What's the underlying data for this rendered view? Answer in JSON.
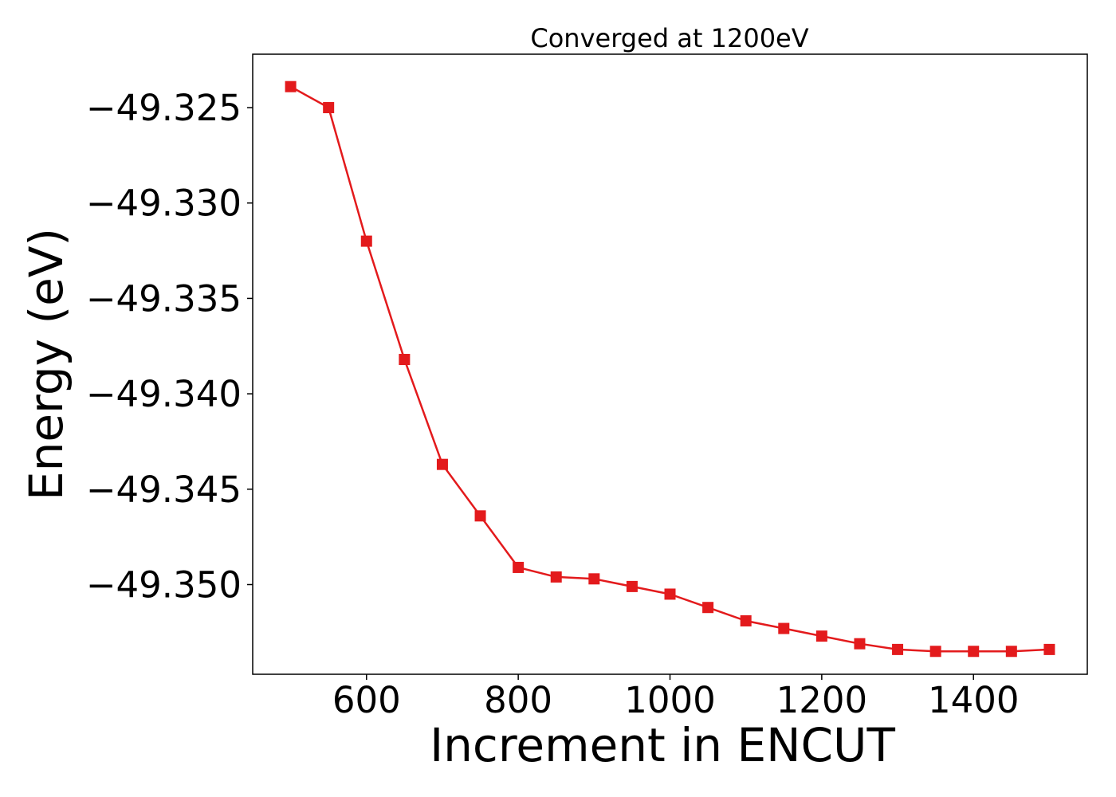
{
  "chart_data": {
    "type": "line",
    "title": "Converged at 1200eV",
    "xlabel": "Increment in ENCUT",
    "ylabel": "Energy (eV)",
    "xlim": [
      450,
      1550
    ],
    "ylim": [
      -49.3547,
      -49.3222
    ],
    "x_ticks": [
      600,
      800,
      1000,
      1200,
      1400
    ],
    "x_tick_labels": [
      "600",
      "800",
      "1000",
      "1200",
      "1400"
    ],
    "y_ticks": [
      -49.325,
      -49.33,
      -49.335,
      -49.34,
      -49.345,
      -49.35
    ],
    "y_tick_labels": [
      "−49.325",
      "−49.330",
      "−49.335",
      "−49.340",
      "−49.345",
      "−49.350"
    ],
    "grid": false,
    "colors": {
      "series": "#e31a1c"
    },
    "series": [
      {
        "marker": "square",
        "x": [
          500,
          550,
          600,
          650,
          700,
          750,
          800,
          850,
          900,
          950,
          1000,
          1050,
          1100,
          1150,
          1200,
          1250,
          1300,
          1350,
          1400,
          1450,
          1500
        ],
        "values": [
          -49.3239,
          -49.325,
          -49.332,
          -49.3382,
          -49.3437,
          -49.3464,
          -49.3491,
          -49.3496,
          -49.3497,
          -49.3501,
          -49.3505,
          -49.3512,
          -49.3519,
          -49.3523,
          -49.3527,
          -49.3531,
          -49.3534,
          -49.3535,
          -49.3535,
          -49.3535,
          -49.3534
        ]
      }
    ]
  }
}
